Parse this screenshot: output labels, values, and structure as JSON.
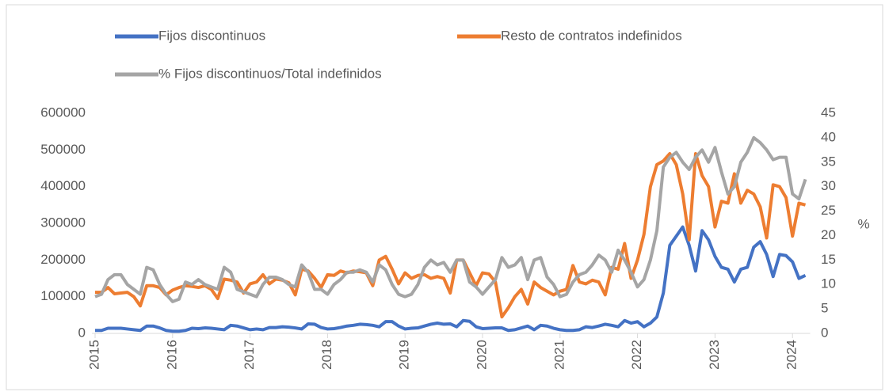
{
  "chart_data": {
    "type": "line",
    "y_right_label": "%",
    "categories": [
      "2015",
      null,
      null,
      null,
      null,
      null,
      null,
      null,
      null,
      null,
      null,
      null,
      "2016",
      null,
      null,
      null,
      null,
      null,
      null,
      null,
      null,
      null,
      null,
      null,
      "2017",
      null,
      null,
      null,
      null,
      null,
      null,
      null,
      null,
      null,
      null,
      null,
      "2018",
      null,
      null,
      null,
      null,
      null,
      null,
      null,
      null,
      null,
      null,
      null,
      "2019",
      null,
      null,
      null,
      null,
      null,
      null,
      null,
      null,
      null,
      null,
      null,
      "2020",
      null,
      null,
      null,
      null,
      null,
      null,
      null,
      null,
      null,
      null,
      null,
      "2021",
      null,
      null,
      null,
      null,
      null,
      null,
      null,
      null,
      null,
      null,
      null,
      "2022",
      null,
      null,
      null,
      null,
      null,
      null,
      null,
      null,
      null,
      null,
      null,
      "2023",
      null,
      null,
      null,
      null,
      null,
      null,
      null,
      null,
      null,
      null,
      null,
      "2024",
      null,
      null
    ],
    "series": [
      {
        "name": "Fijos discontinuos",
        "color": "#4472c4",
        "values": [
          8000,
          8000,
          14000,
          14000,
          14000,
          12000,
          10000,
          8000,
          20000,
          20000,
          15000,
          8000,
          6000,
          6000,
          8000,
          14000,
          13000,
          15000,
          14000,
          12000,
          10000,
          22000,
          20000,
          15000,
          10000,
          12000,
          10000,
          16000,
          16000,
          18000,
          17000,
          15000,
          12000,
          26000,
          25000,
          16000,
          12000,
          13000,
          16000,
          20000,
          22000,
          25000,
          24000,
          22000,
          18000,
          32000,
          32000,
          20000,
          12000,
          14000,
          15000,
          20000,
          25000,
          28000,
          25000,
          26000,
          18000,
          35000,
          33000,
          18000,
          13000,
          14000,
          15000,
          15000,
          8000,
          10000,
          15000,
          20000,
          10000,
          22000,
          20000,
          14000,
          10000,
          8000,
          8000,
          10000,
          18000,
          16000,
          20000,
          25000,
          22000,
          18000,
          35000,
          28000,
          32000,
          18000,
          28000,
          45000,
          110000,
          240000,
          265000,
          290000,
          240000,
          170000,
          280000,
          255000,
          210000,
          180000,
          175000,
          140000,
          175000,
          180000,
          235000,
          250000,
          215000,
          155000,
          215000,
          212000,
          195000,
          150000,
          158000
        ]
      },
      {
        "name": "Resto de contratos indefinidos",
        "color": "#ed7d31",
        "values": [
          112000,
          112000,
          125000,
          108000,
          110000,
          112000,
          100000,
          75000,
          130000,
          130000,
          125000,
          105000,
          118000,
          125000,
          130000,
          128000,
          125000,
          130000,
          120000,
          95000,
          148000,
          145000,
          140000,
          110000,
          135000,
          140000,
          160000,
          135000,
          148000,
          145000,
          138000,
          105000,
          175000,
          170000,
          150000,
          125000,
          160000,
          158000,
          170000,
          165000,
          170000,
          168000,
          165000,
          130000,
          200000,
          210000,
          175000,
          135000,
          165000,
          150000,
          158000,
          160000,
          150000,
          155000,
          150000,
          110000,
          200000,
          200000,
          165000,
          130000,
          165000,
          162000,
          140000,
          45000,
          70000,
          100000,
          120000,
          80000,
          140000,
          125000,
          115000,
          105000,
          115000,
          120000,
          185000,
          140000,
          135000,
          145000,
          140000,
          105000,
          180000,
          175000,
          245000,
          150000,
          200000,
          270000,
          400000,
          460000,
          470000,
          490000,
          460000,
          380000,
          255000,
          490000,
          430000,
          400000,
          290000,
          360000,
          355000,
          435000,
          355000,
          390000,
          380000,
          345000,
          260000,
          405000,
          400000,
          370000,
          265000,
          355000,
          350000
        ]
      },
      {
        "name": "% Fijos discontinuos/Total indefinidos",
        "color": "#a5a5a5",
        "axis": "y2",
        "values": [
          7.5,
          8,
          11,
          12,
          12,
          10,
          9,
          8,
          13.5,
          13,
          10,
          8,
          6.5,
          7,
          10.5,
          10,
          11,
          10,
          9.5,
          9,
          13.5,
          12.5,
          9,
          8.5,
          8,
          7.5,
          10,
          11.5,
          11.5,
          11,
          10,
          9.5,
          14,
          12.5,
          9,
          9,
          8,
          10,
          11,
          12.5,
          12.5,
          13,
          12.5,
          10.5,
          14,
          13,
          10,
          8,
          7.5,
          8,
          10,
          13.5,
          15,
          14,
          14.5,
          12.5,
          15,
          15,
          10.5,
          9.5,
          8,
          9.5,
          11,
          15.5,
          13.5,
          14,
          15.5,
          11,
          15,
          15.5,
          11.5,
          10,
          7.5,
          8,
          10.5,
          12,
          12.5,
          14,
          16,
          15,
          12.5,
          17,
          15,
          12.5,
          9.5,
          11,
          15,
          21,
          34,
          36,
          37,
          35,
          33.5,
          36,
          37.5,
          35,
          38,
          33,
          28.5,
          30,
          35,
          37,
          40,
          39,
          37.5,
          35.5,
          36,
          36,
          28.5,
          27.5,
          31.5
        ]
      }
    ],
    "ylim": [
      0,
      600000
    ],
    "yticks": [
      0,
      100000,
      200000,
      300000,
      400000,
      500000,
      600000
    ],
    "y2lim": [
      0,
      45
    ],
    "y2ticks": [
      0,
      5,
      10,
      15,
      20,
      25,
      30,
      35,
      40,
      45
    ],
    "legend": "top"
  }
}
